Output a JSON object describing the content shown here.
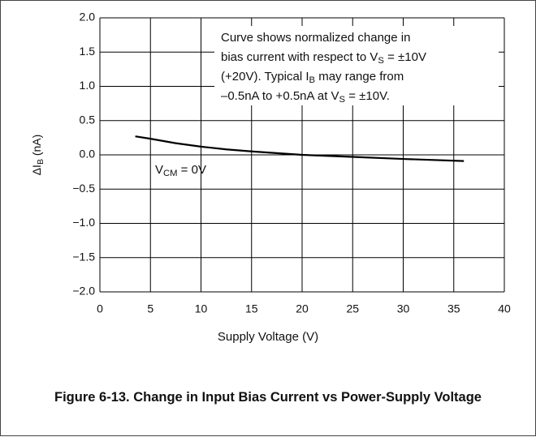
{
  "chart_data": {
    "type": "line",
    "caption": "Figure 6-13. Change in Input Bias Current vs Power-Supply Voltage",
    "xlabel": "Supply Voltage (V)",
    "ylabel": [
      "ΔI",
      "B",
      " (nA)"
    ],
    "annotation": [
      [
        "Curve shows normalized change in"
      ],
      [
        "bias current with respect to V",
        "S",
        " = ±10V"
      ],
      [
        "(+20V). Typical I",
        "B",
        " may range from"
      ],
      [
        "–0.5nA to +0.5nA at V",
        "S",
        " = ±10V."
      ]
    ],
    "curve_label": [
      "V",
      "CM",
      " = 0V"
    ],
    "x": [
      3.5,
      5,
      7.5,
      10,
      12.5,
      15,
      20,
      25,
      30,
      36
    ],
    "values": [
      0.27,
      0.235,
      0.17,
      0.12,
      0.08,
      0.05,
      0.0,
      -0.03,
      -0.06,
      -0.09
    ],
    "color": "#000000",
    "xlim": [
      0,
      40
    ],
    "ylim": [
      -2,
      2
    ],
    "xticks": [
      0,
      5,
      10,
      15,
      20,
      25,
      30,
      35,
      40
    ],
    "yticks": [
      {
        "value": -2,
        "label": "−2.0"
      },
      {
        "value": -1.5,
        "label": "−1.5"
      },
      {
        "value": -1,
        "label": "−1.0"
      },
      {
        "value": -0.5,
        "label": "−0.5"
      },
      {
        "value": 0,
        "label": "0.0"
      },
      0.5,
      {
        "value": 1,
        "label": "1.0"
      },
      1.5,
      {
        "value": 2,
        "label": "2.0"
      }
    ],
    "grid": true
  }
}
